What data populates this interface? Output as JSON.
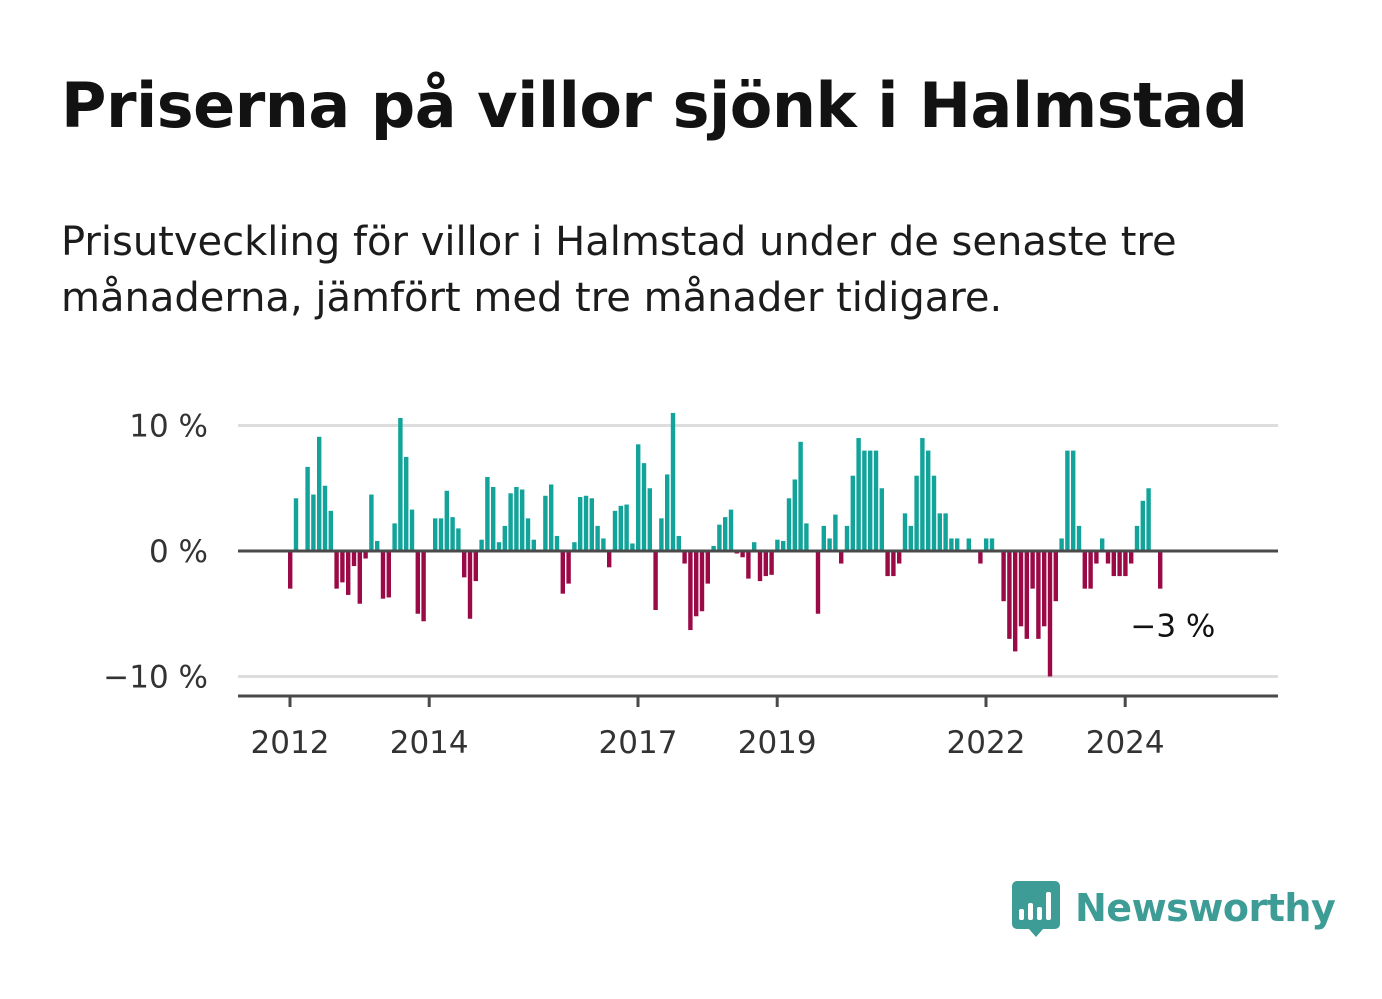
{
  "title": "Priserna på villor sjönk i Halmstad",
  "subtitle": "Prisutveckling för villor i Halmstad under de senaste tre månaderna, jämfört med tre månader tidigare.",
  "brand": {
    "name": "Newsworthy",
    "icon": "newsworthy-logo-icon",
    "color": "#3d9c95"
  },
  "colors": {
    "positive": "#12a39a",
    "negative": "#9b0a47",
    "zero_line": "#4a4a4a",
    "grid": "#dddddd"
  },
  "chart_data": {
    "type": "bar",
    "title": "Priserna på villor sjönk i Halmstad",
    "xlabel": "",
    "ylabel": "",
    "ylim": [
      -11.5,
      10
    ],
    "y_ticks": [
      10,
      0,
      -10
    ],
    "y_tick_labels": [
      "10 %",
      "0 %",
      "−10 %"
    ],
    "x_ticks": [
      2012,
      2014,
      2017,
      2019,
      2022,
      2024
    ],
    "x_tick_labels": [
      "2012",
      "2014",
      "2017",
      "2019",
      "2022",
      "2024"
    ],
    "grid": true,
    "annotation": {
      "text": "−3 %",
      "x": "2024-10",
      "value": -3
    },
    "x_start": "2012-01",
    "x_end": "2024-10",
    "values": [
      -3.0,
      4.2,
      0.1,
      6.7,
      4.5,
      9.1,
      5.2,
      3.2,
      -3.0,
      -2.5,
      -3.5,
      -1.2,
      -4.2,
      -0.6,
      4.5,
      0.8,
      -3.8,
      -3.7,
      2.2,
      10.6,
      7.5,
      3.3,
      -5.0,
      -5.6,
      0.0,
      2.6,
      2.6,
      4.8,
      2.7,
      1.8,
      -2.1,
      -5.4,
      -2.4,
      0.9,
      5.9,
      5.1,
      0.7,
      2.0,
      4.6,
      5.1,
      4.9,
      2.6,
      0.9,
      0.0,
      4.4,
      5.3,
      1.2,
      -3.4,
      -2.6,
      0.7,
      4.3,
      4.4,
      4.2,
      2.0,
      1.0,
      -1.3,
      3.2,
      3.6,
      3.7,
      0.6,
      8.5,
      7.0,
      5.0,
      -4.7,
      2.6,
      6.1,
      11.0,
      1.2,
      -1.0,
      -6.3,
      -5.2,
      -4.8,
      -2.6,
      0.4,
      2.1,
      2.7,
      3.3,
      -0.2,
      -0.5,
      -2.2,
      0.7,
      -2.4,
      -2.0,
      -1.9,
      0.9,
      0.8,
      4.2,
      5.7,
      8.7,
      2.2,
      0.0,
      -5.0,
      2.0,
      1.0,
      2.9,
      -1.0,
      2.0,
      6.0,
      9.0,
      8.0,
      8.0,
      8.0,
      5.0,
      -2.0,
      -2.0,
      -1.0,
      3.0,
      2.0,
      6.0,
      9.0,
      8.0,
      6.0,
      3.0,
      3.0,
      1.0,
      1.0,
      0.0,
      1.0,
      0.0,
      -1.0,
      1.0,
      1.0,
      0.0,
      -4.0,
      -7.0,
      -8.0,
      -6.0,
      -7.0,
      -3.0,
      -7.0,
      -6.0,
      -10.0,
      -4.0,
      1.0,
      8.0,
      8.0,
      2.0,
      -3.0,
      -3.0,
      -1.0,
      1.0,
      -1.0,
      -2.0,
      -2.0,
      -2.0,
      -1.0,
      2.0,
      4.0,
      5.0,
      0.0,
      -3.0
    ]
  }
}
